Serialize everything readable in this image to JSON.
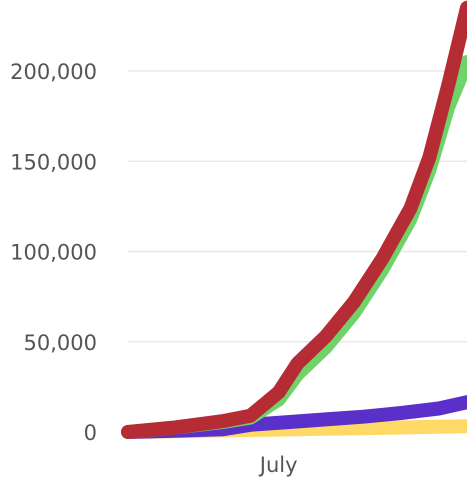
{
  "chart_data": {
    "type": "line",
    "title": "",
    "xlabel": "",
    "ylabel": "",
    "x_axis": {
      "tick_labels": [
        "July"
      ],
      "range": [
        "2020-06-15",
        "2020-07-21"
      ]
    },
    "y_axis": {
      "tick_labels": [
        "0",
        "50,000",
        "100,000",
        "150,000",
        "200,000"
      ],
      "tick_values": [
        0,
        50000,
        100000,
        150000,
        200000
      ],
      "ylim": [
        0,
        230000
      ]
    },
    "grid": true,
    "legend": "none",
    "series": [
      {
        "color": "#ffd966",
        "points": [
          [
            "2020-06-15",
            0
          ],
          [
            "2020-06-20",
            400
          ],
          [
            "2020-06-25",
            900
          ],
          [
            "2020-06-30",
            1300
          ],
          [
            "2020-07-05",
            1700
          ],
          [
            "2020-07-10",
            2100
          ],
          [
            "2020-07-15",
            2600
          ],
          [
            "2020-07-21",
            3200
          ]
        ]
      },
      {
        "color": "#5b2fc9",
        "points": [
          [
            "2020-06-15",
            0
          ],
          [
            "2020-06-20",
            700
          ],
          [
            "2020-06-25",
            1500
          ],
          [
            "2020-06-28",
            4000
          ],
          [
            "2020-07-02",
            5500
          ],
          [
            "2020-07-06",
            7000
          ],
          [
            "2020-07-10",
            8500
          ],
          [
            "2020-07-14",
            10500
          ],
          [
            "2020-07-18",
            13000
          ],
          [
            "2020-07-21",
            16500
          ]
        ]
      },
      {
        "color": "#6fd36a",
        "points": [
          [
            "2020-06-15",
            0
          ],
          [
            "2020-06-20",
            2500
          ],
          [
            "2020-06-25",
            5500
          ],
          [
            "2020-06-28",
            8000
          ],
          [
            "2020-07-01",
            18000
          ],
          [
            "2020-07-03",
            32000
          ],
          [
            "2020-07-06",
            47000
          ],
          [
            "2020-07-09",
            66000
          ],
          [
            "2020-07-12",
            90000
          ],
          [
            "2020-07-15",
            118000
          ],
          [
            "2020-07-17",
            145000
          ],
          [
            "2020-07-19",
            180000
          ],
          [
            "2020-07-21",
            205000
          ]
        ]
      },
      {
        "color": "#b62c35",
        "points": [
          [
            "2020-06-15",
            0
          ],
          [
            "2020-06-20",
            2500
          ],
          [
            "2020-06-25",
            6000
          ],
          [
            "2020-06-28",
            9000
          ],
          [
            "2020-07-01",
            22000
          ],
          [
            "2020-07-03",
            38000
          ],
          [
            "2020-07-06",
            53000
          ],
          [
            "2020-07-09",
            72000
          ],
          [
            "2020-07-12",
            96000
          ],
          [
            "2020-07-15",
            124000
          ],
          [
            "2020-07-17",
            152000
          ],
          [
            "2020-07-19",
            192000
          ],
          [
            "2020-07-21",
            235000
          ]
        ]
      }
    ]
  }
}
